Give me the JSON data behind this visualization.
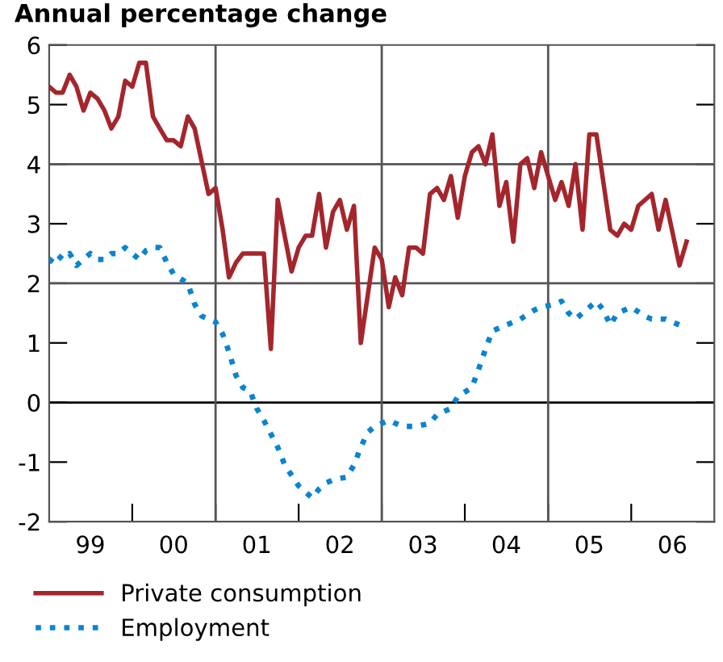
{
  "chart_data": {
    "type": "line",
    "title": "Annual percentage change",
    "xlim": [
      "1999-01-01",
      "2007-01-01"
    ],
    "ylim": [
      -2,
      6
    ],
    "yticks": [
      -2,
      -1,
      0,
      1,
      2,
      3,
      4,
      5,
      6
    ],
    "xticks": [
      {
        "value": "2000-01-01",
        "label": null
      },
      {
        "value": "2001-01-01",
        "label": null
      },
      {
        "value": "2002-01-01",
        "label": null
      },
      {
        "value": "2003-01-01",
        "label": null
      },
      {
        "value": "2004-01-01",
        "label": null
      },
      {
        "value": "2005-01-01",
        "label": null
      },
      {
        "value": "2006-01-01",
        "label": null
      },
      {
        "value": "1999-07-01",
        "label": "99"
      },
      {
        "value": "2000-07-01",
        "label": "00"
      },
      {
        "value": "2001-07-01",
        "label": "01"
      },
      {
        "value": "2002-07-01",
        "label": "02"
      },
      {
        "value": "2003-07-01",
        "label": "03"
      },
      {
        "value": "2004-07-01",
        "label": "04"
      },
      {
        "value": "2005-07-01",
        "label": "05"
      },
      {
        "value": "2006-07-01",
        "label": "06"
      }
    ],
    "ref_lines": [
      {
        "axis": "y",
        "value": 0,
        "color": "#000000"
      },
      {
        "axis": "y",
        "value": 2,
        "color": "#555555"
      },
      {
        "axis": "y",
        "value": 4,
        "color": "#555555"
      },
      {
        "axis": "x",
        "value": "2001-01-01",
        "color": "#555555"
      },
      {
        "axis": "x",
        "value": "2003-01-01",
        "color": "#555555"
      },
      {
        "axis": "x",
        "value": "2005-01-01",
        "color": "#555555"
      }
    ],
    "legend": "bottom",
    "series": [
      {
        "name": "Private consumption",
        "color": "#a4262c",
        "line_style": "solid",
        "x": [
          "1999-01",
          "1999-02",
          "1999-03",
          "1999-04",
          "1999-05",
          "1999-06",
          "1999-07",
          "1999-08",
          "1999-09",
          "1999-10",
          "1999-11",
          "1999-12",
          "2000-01",
          "2000-02",
          "2000-03",
          "2000-04",
          "2000-05",
          "2000-06",
          "2000-07",
          "2000-08",
          "2000-09",
          "2000-10",
          "2000-12",
          "2001-01",
          "2001-02",
          "2001-03",
          "2001-04",
          "2001-05",
          "2001-08",
          "2001-09",
          "2001-10",
          "2001-12",
          "2002-01",
          "2002-02",
          "2002-03",
          "2002-04",
          "2002-05",
          "2002-06",
          "2002-07",
          "2002-08",
          "2002-09",
          "2002-10",
          "2002-12",
          "2003-01",
          "2003-02",
          "2003-03",
          "2003-04",
          "2003-05",
          "2003-06",
          "2003-07",
          "2003-08",
          "2003-09",
          "2003-10",
          "2003-11",
          "2003-12",
          "2004-01",
          "2004-02",
          "2004-03",
          "2004-04",
          "2004-05",
          "2004-06",
          "2004-07",
          "2004-08",
          "2004-09",
          "2004-10",
          "2004-11",
          "2004-12",
          "2005-02",
          "2005-03",
          "2005-04",
          "2005-05",
          "2005-06",
          "2005-07",
          "2005-08",
          "2005-10",
          "2005-11",
          "2005-12",
          "2006-01",
          "2006-02",
          "2006-04",
          "2006-05",
          "2006-06",
          "2006-08",
          "2006-09"
        ],
        "values": [
          5.3,
          5.2,
          5.2,
          5.5,
          5.3,
          4.9,
          5.2,
          5.1,
          4.9,
          4.6,
          4.8,
          5.4,
          5.3,
          5.7,
          5.7,
          4.8,
          4.6,
          4.4,
          4.4,
          4.3,
          4.8,
          4.6,
          3.5,
          3.6,
          2.9,
          2.1,
          2.35,
          2.5,
          2.5,
          0.9,
          3.4,
          2.2,
          2.6,
          2.8,
          2.8,
          3.5,
          2.6,
          3.2,
          3.4,
          2.9,
          3.3,
          1.0,
          2.6,
          2.4,
          1.6,
          2.1,
          1.8,
          2.6,
          2.6,
          2.5,
          3.5,
          3.6,
          3.4,
          3.8,
          3.1,
          3.8,
          4.2,
          4.3,
          4.0,
          4.5,
          3.3,
          3.7,
          2.7,
          4.0,
          4.1,
          3.6,
          4.2,
          3.4,
          3.7,
          3.3,
          4.0,
          2.9,
          4.5,
          4.5,
          2.9,
          2.8,
          3.0,
          2.9,
          3.3,
          3.5,
          2.9,
          3.4,
          2.3,
          2.7
        ]
      },
      {
        "name": "Employment",
        "color": "#0a84d0",
        "line_style": "dotted",
        "x": [
          "1999-01",
          "1999-02",
          "1999-03",
          "1999-04",
          "1999-05",
          "1999-07",
          "1999-08",
          "1999-09",
          "1999-10",
          "1999-11",
          "1999-12",
          "2000-02",
          "2000-03",
          "2000-04",
          "2000-05",
          "2000-06",
          "2000-07",
          "2000-09",
          "2000-10",
          "2000-11",
          "2001-01",
          "2001-02",
          "2001-03",
          "2001-04",
          "2001-05",
          "2001-06",
          "2001-07",
          "2001-08",
          "2001-10",
          "2001-11",
          "2002-01",
          "2002-03",
          "2002-04",
          "2002-05",
          "2002-06",
          "2002-08",
          "2002-09",
          "2002-10",
          "2002-11",
          "2002-12",
          "2003-02",
          "2003-04",
          "2003-06",
          "2003-08",
          "2003-09",
          "2003-11",
          "2003-12",
          "2004-02",
          "2004-03",
          "2004-04",
          "2004-05",
          "2004-07",
          "2004-09",
          "2004-11",
          "2004-12",
          "2005-02",
          "2005-03",
          "2005-04",
          "2005-05",
          "2005-06",
          "2005-08",
          "2005-09",
          "2005-10",
          "2005-11",
          "2006-01",
          "2006-03",
          "2006-04",
          "2006-06",
          "2006-07",
          "2006-08"
        ],
        "values": [
          2.35,
          2.5,
          2.4,
          2.5,
          2.3,
          2.5,
          2.4,
          2.4,
          2.5,
          2.5,
          2.6,
          2.4,
          2.55,
          2.6,
          2.6,
          2.35,
          2.15,
          2.0,
          1.65,
          1.45,
          1.35,
          1.15,
          0.85,
          0.45,
          0.25,
          0.2,
          -0.1,
          -0.3,
          -0.75,
          -1.05,
          -1.4,
          -1.6,
          -1.45,
          -1.35,
          -1.3,
          -1.25,
          -1.05,
          -0.75,
          -0.5,
          -0.4,
          -0.3,
          -0.4,
          -0.4,
          -0.35,
          -0.2,
          -0.1,
          0.1,
          0.25,
          0.55,
          0.9,
          1.2,
          1.3,
          1.4,
          1.55,
          1.6,
          1.65,
          1.7,
          1.5,
          1.4,
          1.5,
          1.7,
          1.55,
          1.3,
          1.5,
          1.6,
          1.45,
          1.4,
          1.4,
          1.35,
          1.3
        ]
      }
    ]
  }
}
